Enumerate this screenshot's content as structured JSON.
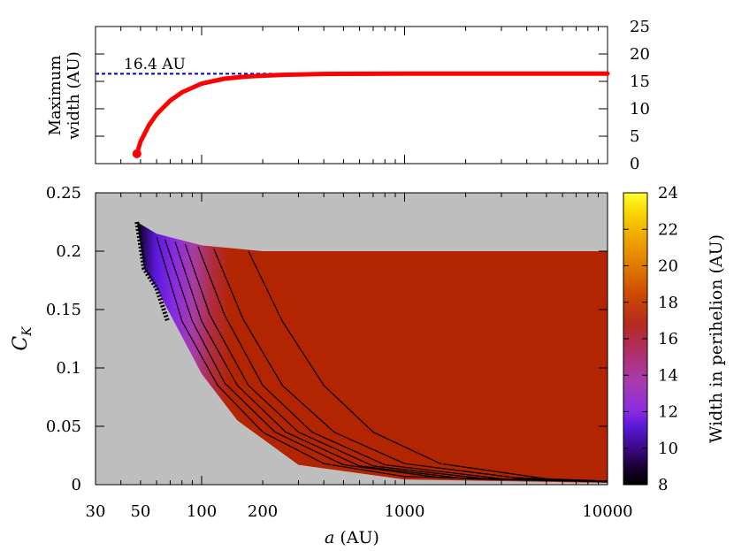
{
  "figure": {
    "top_panel": {
      "ylabel_line1": "Maximum",
      "ylabel_line2": "width (AU)",
      "annotation": "16.4 AU",
      "y_ticks": [
        "0",
        "5",
        "10",
        "15",
        "20",
        "25"
      ]
    },
    "bottom_panel": {
      "ylabel": "C",
      "ylabel_sub": "K",
      "xlabel_var": "a",
      "xlabel_unit": " (AU)",
      "y_ticks": [
        "0",
        "0.05",
        "0.1",
        "0.15",
        "0.2",
        "0.25"
      ],
      "x_ticks": [
        "30",
        "50",
        "100",
        "200",
        "1000",
        "10000"
      ]
    },
    "colorbar": {
      "label": "Width in perihelion (AU)",
      "ticks": [
        "8",
        "10",
        "12",
        "14",
        "16",
        "18",
        "20",
        "22",
        "24"
      ]
    }
  },
  "chart_data": [
    {
      "type": "line",
      "panel": "top",
      "xlabel": "",
      "ylabel": "Maximum width (AU)",
      "x_scale": "log",
      "xlim": [
        30,
        10000
      ],
      "ylim": [
        0,
        25
      ],
      "grid": false,
      "annotations": [
        {
          "text": "16.4 AU",
          "y": 16.4
        }
      ],
      "series": [
        {
          "x": [
            48,
            50,
            55,
            60,
            70,
            80,
            100,
            130,
            170,
            250,
            400,
            1000,
            10000
          ],
          "y": [
            1.8,
            4.0,
            7.0,
            9.0,
            11.5,
            13.0,
            14.6,
            15.5,
            15.9,
            16.2,
            16.35,
            16.4,
            16.4
          ],
          "color": "#ff0000",
          "style": "line"
        },
        {
          "x": [
            30,
            10000
          ],
          "y": [
            16.4,
            16.4
          ],
          "color": "#0000cc",
          "style": "dashed"
        }
      ]
    },
    {
      "type": "heatmap",
      "panel": "bottom",
      "xlabel": "a (AU)",
      "ylabel": "C_K",
      "x_scale": "log",
      "xlim": [
        30,
        10000
      ],
      "ylim": [
        0,
        0.25
      ],
      "background": "#bebebe",
      "colorbar_label": "Width in perihelion (AU)",
      "colorbar_range": [
        8,
        24
      ],
      "region": {
        "upper_edge": [
          [
            48,
            0.225
          ],
          [
            60,
            0.215
          ],
          [
            100,
            0.205
          ],
          [
            200,
            0.2
          ],
          [
            10000,
            0.2
          ]
        ],
        "lower_edge": [
          [
            48,
            0.225
          ],
          [
            52,
            0.185
          ],
          [
            60,
            0.168
          ],
          [
            100,
            0.095
          ],
          [
            150,
            0.055
          ],
          [
            300,
            0.017
          ],
          [
            1000,
            0.0045
          ],
          [
            10000,
            0.0015
          ]
        ],
        "saturated_value": 16.4,
        "fill_color": "#b32400"
      },
      "contour_lines": [
        {
          "x": [
            60,
            80,
            120,
            200,
            400,
            1000,
            10000
          ],
          "y": [
            0.212,
            0.14,
            0.085,
            0.045,
            0.018,
            0.007,
            0.0025
          ]
        },
        {
          "x": [
            66,
            90,
            130,
            230,
            500,
            1500,
            10000
          ],
          "y": [
            0.21,
            0.14,
            0.087,
            0.045,
            0.017,
            0.006,
            0.0025
          ]
        },
        {
          "x": [
            74,
            100,
            150,
            260,
            600,
            2000,
            10000
          ],
          "y": [
            0.208,
            0.14,
            0.085,
            0.045,
            0.016,
            0.005,
            0.0025
          ]
        },
        {
          "x": [
            83,
            110,
            170,
            300,
            700,
            2500,
            10000
          ],
          "y": [
            0.206,
            0.145,
            0.085,
            0.045,
            0.016,
            0.005,
            0.003
          ]
        },
        {
          "x": [
            96,
            130,
            200,
            350,
            800,
            3000,
            10000
          ],
          "y": [
            0.204,
            0.145,
            0.085,
            0.045,
            0.017,
            0.005,
            0.003
          ]
        },
        {
          "x": [
            115,
            160,
            250,
            450,
            1000,
            3500,
            10000
          ],
          "y": [
            0.202,
            0.142,
            0.085,
            0.045,
            0.018,
            0.006,
            0.003
          ]
        },
        {
          "x": [
            170,
            250,
            400,
            700,
            1500,
            5000,
            10000
          ],
          "y": [
            0.2,
            0.14,
            0.085,
            0.045,
            0.018,
            0.005,
            0.003
          ]
        }
      ]
    }
  ]
}
